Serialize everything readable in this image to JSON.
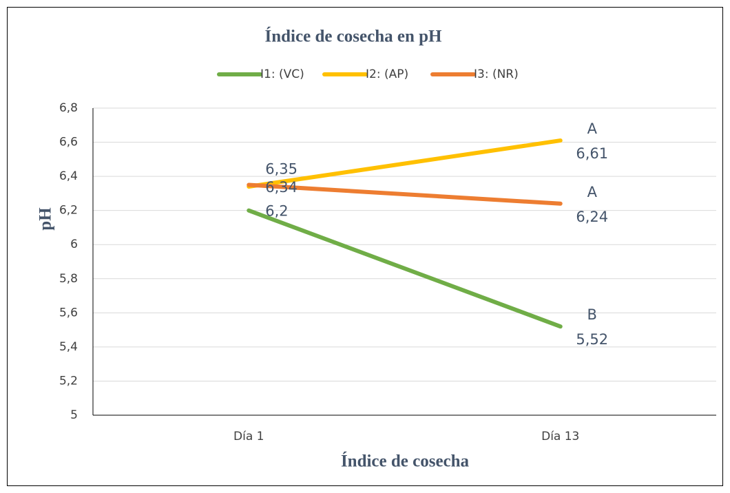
{
  "chart_data": {
    "type": "line",
    "title": "Índice de cosecha en pH",
    "x_label": "Índice de cosecha",
    "y_label": "pH",
    "categories": [
      "Día 1",
      "Día 13"
    ],
    "series": [
      {
        "name": "I1: (VC)",
        "color": "#70ad47",
        "values": [
          6.2,
          5.52
        ],
        "value_labels": [
          "6,2",
          "5,52"
        ],
        "group_labels": [
          null,
          "B"
        ]
      },
      {
        "name": "I2: (AP)",
        "color": "#ffc000",
        "values": [
          6.34,
          6.61
        ],
        "value_labels": [
          "6,34",
          "6,61"
        ],
        "group_labels": [
          null,
          "A"
        ]
      },
      {
        "name": "I3: (NR)",
        "color": "#ed7d31",
        "values": [
          6.35,
          6.24
        ],
        "value_labels": [
          "6,35",
          "6,24"
        ],
        "group_labels": [
          null,
          "A"
        ]
      }
    ],
    "ylim": [
      5,
      6.8
    ],
    "yticks": [
      5,
      {
        "value": 5.2,
        "label": "5,2"
      },
      {
        "value": 5.4,
        "label": "5,4"
      },
      {
        "value": 5.6,
        "label": "5,6"
      },
      {
        "value": 5.8,
        "label": "5,8"
      },
      6,
      {
        "value": 6.2,
        "label": "6,2"
      },
      {
        "value": 6.4,
        "label": "6,4"
      },
      {
        "value": 6.6,
        "label": "6,6"
      },
      {
        "value": 6.8,
        "label": "6,8"
      }
    ],
    "grid": true,
    "legend": "top"
  }
}
